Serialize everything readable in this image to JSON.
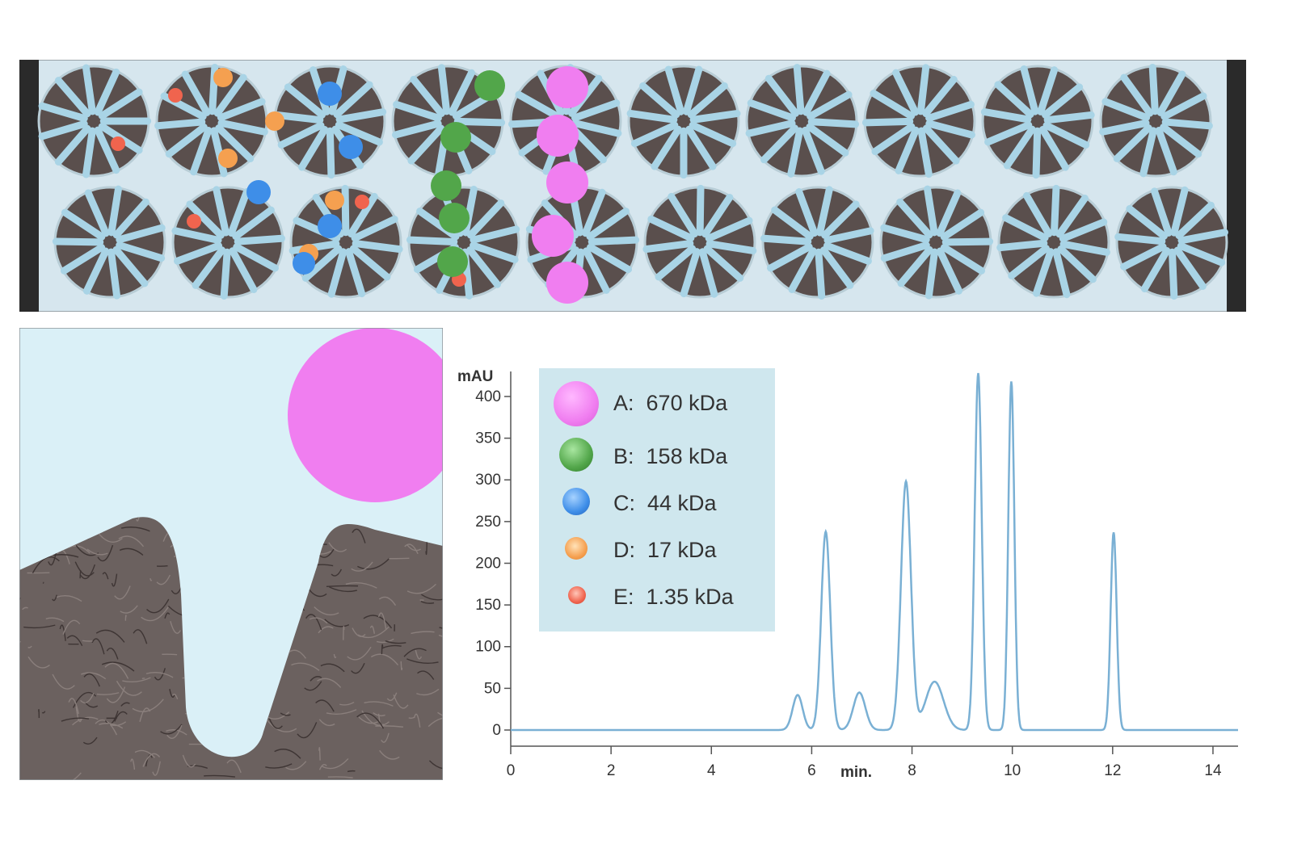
{
  "colors": {
    "column_fill": "#d6e6ee",
    "bead": "#5a4f4d",
    "pore": "#a9d4e6",
    "mobile_phase": "#daf0f7",
    "trace": "#7ab0d4",
    "legend_bg": "#cfe7ee",
    "protein_a": "#f07ef0",
    "protein_b": "#52a64a",
    "protein_c": "#3e8ee8",
    "protein_d": "#f5a050",
    "protein_e": "#f0644e"
  },
  "legend": [
    {
      "letter": "A:",
      "label": "670 kDa",
      "color": "#f07ef0"
    },
    {
      "letter": "B:",
      "label": "158 kDa",
      "color": "#52a64a"
    },
    {
      "letter": "C:",
      "label": "44 kDa",
      "color": "#3e8ee8"
    },
    {
      "letter": "D:",
      "label": "17 kDa",
      "color": "#f5a050"
    },
    {
      "letter": "E:",
      "label": "1.35 kDa",
      "color": "#f0644e"
    }
  ],
  "chart_data": {
    "type": "line",
    "title": "",
    "xlabel": "min.",
    "ylabel": "mAU",
    "xlim": [
      0,
      14.5
    ],
    "ylim": [
      0,
      430
    ],
    "x_ticks": [
      "0",
      "2",
      "4",
      "6",
      "8",
      "10",
      "12",
      "14"
    ],
    "y_ticks": [
      "0",
      "50",
      "100",
      "150",
      "200",
      "250",
      "300",
      "350",
      "400"
    ],
    "grid": false,
    "legend_position": "top-left",
    "peaks": [
      {
        "x": 5.72,
        "y": 42
      },
      {
        "x": 6.28,
        "y": 238
      },
      {
        "x": 6.95,
        "y": 45
      },
      {
        "x": 7.88,
        "y": 298
      },
      {
        "x": 8.45,
        "y": 58
      },
      {
        "x": 9.32,
        "y": 428
      },
      {
        "x": 9.98,
        "y": 418
      },
      {
        "x": 12.02,
        "y": 237
      }
    ]
  }
}
